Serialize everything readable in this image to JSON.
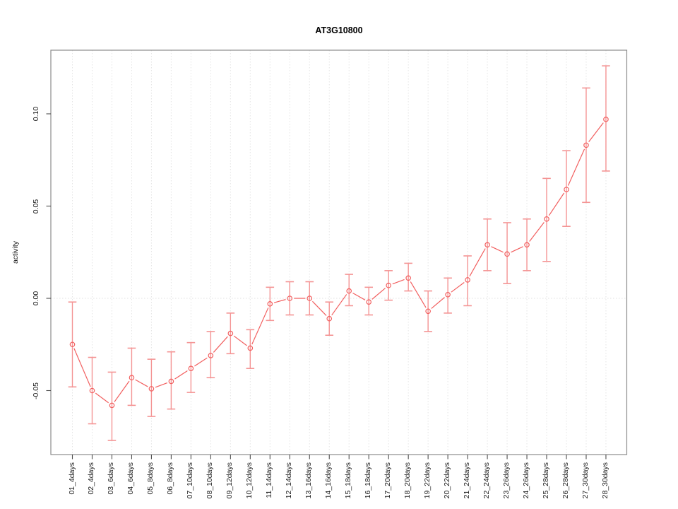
{
  "figure": {
    "title": "AT3G10800",
    "ylabel": "activity"
  },
  "chart_data": {
    "type": "line",
    "title": "AT3G10800",
    "xlabel": "",
    "ylabel": "activity",
    "style": "points-and-segments with error bars (R type='b'), open circle markers",
    "legend": "none",
    "grid": "vertical dotted gridline at every category; dotted horizontal line at y=0",
    "ylim": [
      -0.085,
      0.134
    ],
    "yticks": [
      -0.05,
      0,
      0.05,
      0.1
    ],
    "ytick_labels": [
      "-0.05",
      "0.00",
      "0.05",
      "0.10"
    ],
    "categories": [
      "01_4days",
      "02_4days",
      "03_6days",
      "04_6days",
      "05_8days",
      "06_8days",
      "07_10days",
      "08_10days",
      "09_12days",
      "10_12days",
      "11_14days",
      "12_14days",
      "13_16days",
      "14_16days",
      "15_18days",
      "16_18days",
      "17_20days",
      "18_20days",
      "19_22days",
      "20_22days",
      "21_24days",
      "22_24days",
      "23_26days",
      "24_26days",
      "25_28days",
      "26_28days",
      "27_30days",
      "28_30days"
    ],
    "series": [
      {
        "name": "activity",
        "values": [
          -0.025,
          -0.05,
          -0.058,
          -0.043,
          -0.049,
          -0.045,
          -0.038,
          -0.031,
          -0.019,
          -0.027,
          -0.003,
          0.0,
          0.0,
          -0.011,
          0.004,
          -0.002,
          0.007,
          0.011,
          -0.007,
          0.002,
          0.01,
          0.029,
          0.024,
          0.029,
          0.043,
          0.059,
          0.083,
          0.097
        ],
        "ci_lower": [
          -0.048,
          -0.068,
          -0.077,
          -0.058,
          -0.064,
          -0.06,
          -0.051,
          -0.043,
          -0.03,
          -0.038,
          -0.012,
          -0.009,
          -0.009,
          -0.02,
          -0.004,
          -0.009,
          -0.001,
          0.004,
          -0.018,
          -0.008,
          -0.004,
          0.015,
          0.008,
          0.015,
          0.02,
          0.039,
          0.052,
          0.069
        ],
        "ci_upper": [
          -0.002,
          -0.032,
          -0.04,
          -0.027,
          -0.033,
          -0.029,
          -0.024,
          -0.018,
          -0.008,
          -0.017,
          0.006,
          0.009,
          0.009,
          -0.002,
          0.013,
          0.006,
          0.015,
          0.019,
          0.004,
          0.011,
          0.023,
          0.043,
          0.041,
          0.043,
          0.065,
          0.08,
          0.114,
          0.126
        ]
      }
    ],
    "colors": {
      "point_line": "#f25f5f",
      "error_bar": "#f49494",
      "grid": "#e4e4e4",
      "zero_line": "#e0e0e0",
      "axis_box": "#8c8c8c",
      "tick": "#4d4d4d",
      "text": "#1a1a1a",
      "background": "#ffffff"
    }
  }
}
